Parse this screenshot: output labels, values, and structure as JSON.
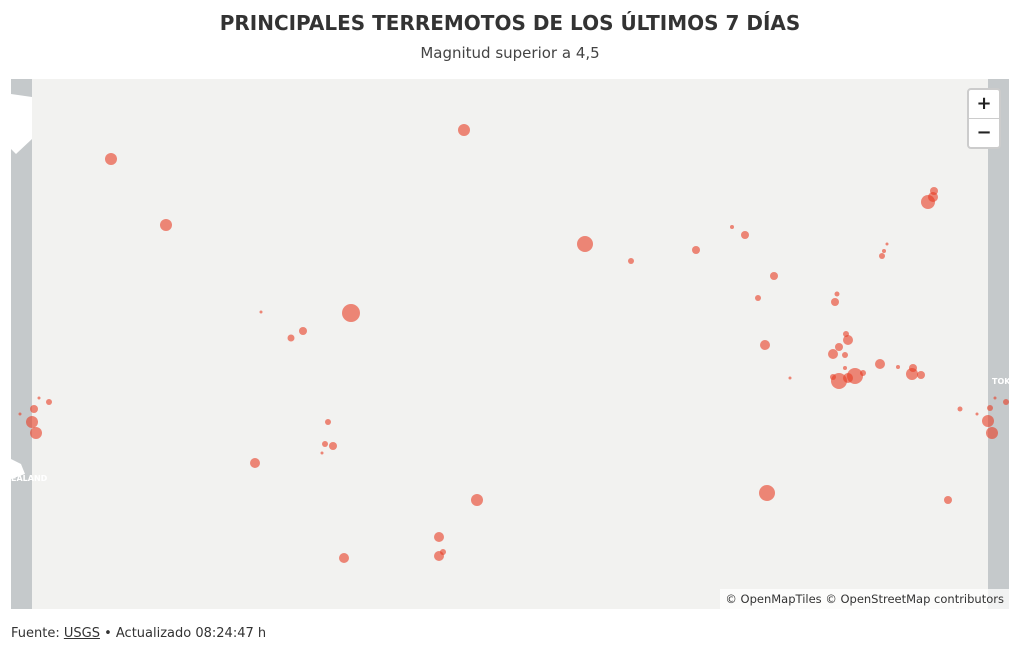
{
  "header": {
    "title": "PRINCIPALES TERREMOTOS DE LOS ÚLTIMOS 7 DÍAS",
    "subtitle": "Magnitud superior a 4,5"
  },
  "map": {
    "zoom_in": "+",
    "zoom_out": "−",
    "labels": [
      "TOK",
      "EALAND"
    ],
    "attribution": "© OpenMapTiles © OpenStreetMap contributors"
  },
  "footer": {
    "source_prefix": "Fuente:",
    "source_link": "USGS",
    "updated": "• Actualizado 08:24:47 h"
  }
}
